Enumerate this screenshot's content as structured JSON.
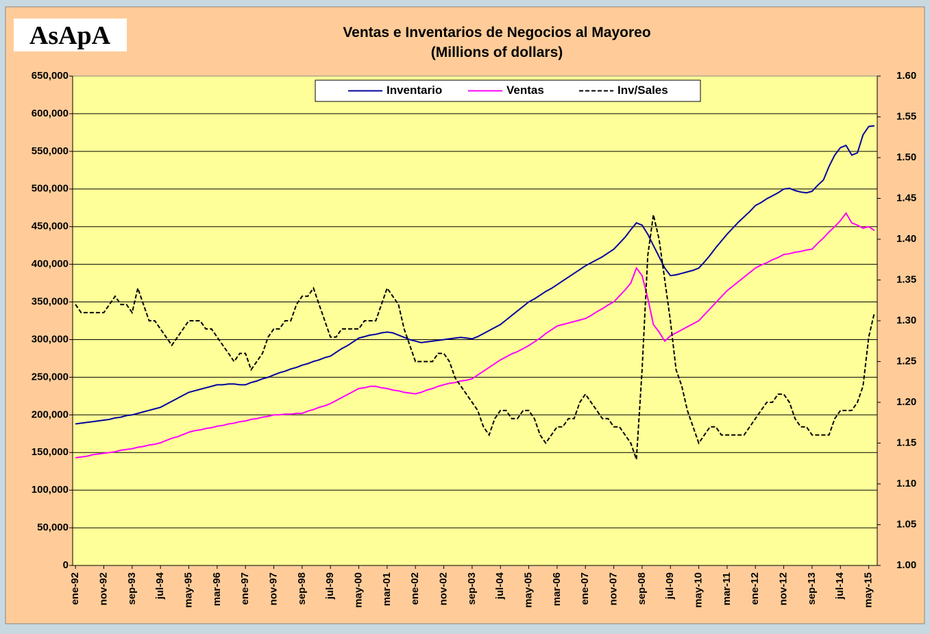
{
  "logo": "AsApA",
  "chart_data": {
    "type": "line",
    "title": "Ventas e Inventarios de Negocios al Mayoreo",
    "subtitle": "(Millions of dollars)",
    "categories": [
      "ene-92",
      null,
      null,
      null,
      null,
      "nov-92",
      null,
      null,
      null,
      null,
      "sep-93",
      null,
      null,
      null,
      null,
      "jul-94",
      null,
      null,
      null,
      null,
      "may-95",
      null,
      null,
      null,
      null,
      "mar-96",
      null,
      null,
      null,
      null,
      "ene-97",
      null,
      null,
      null,
      null,
      "nov-97",
      null,
      null,
      null,
      null,
      "sep-98",
      null,
      null,
      null,
      null,
      "jul-99",
      null,
      null,
      null,
      null,
      "may-00",
      null,
      null,
      null,
      null,
      "mar-01",
      null,
      null,
      null,
      null,
      "ene-02",
      null,
      null,
      null,
      null,
      "nov-02",
      null,
      null,
      null,
      null,
      "sep-03",
      null,
      null,
      null,
      null,
      "jul-04",
      null,
      null,
      null,
      null,
      "may-05",
      null,
      null,
      null,
      null,
      "mar-06",
      null,
      null,
      null,
      null,
      "ene-07",
      null,
      null,
      null,
      null,
      "nov-07",
      null,
      null,
      null,
      null,
      "sep-08",
      null,
      null,
      null,
      null,
      "jul-09",
      null,
      null,
      null,
      null,
      "may-10",
      null,
      null,
      null,
      null,
      "mar-11",
      null,
      null,
      null,
      null,
      "ene-12",
      null,
      null,
      null,
      null,
      "nov-12",
      null,
      null,
      null,
      null,
      "sep-13",
      null,
      null,
      null,
      null,
      "jul-14",
      null,
      null,
      null,
      null,
      "may-15",
      null
    ],
    "series": [
      {
        "name": "Inventario",
        "color": "#0000a0",
        "dash": false,
        "values": [
          188000,
          189000,
          190000,
          191000,
          192000,
          193000,
          194000,
          196000,
          197000,
          199000,
          200000,
          202000,
          204000,
          206000,
          208000,
          210000,
          214000,
          218000,
          222000,
          226000,
          230000,
          232000,
          234000,
          236000,
          238000,
          240000,
          240000,
          241000,
          241000,
          240000,
          240000,
          243000,
          245000,
          248000,
          250000,
          253000,
          256000,
          258000,
          261000,
          263000,
          266000,
          268000,
          271000,
          273000,
          276000,
          278000,
          283000,
          288000,
          292000,
          297000,
          302000,
          304000,
          306000,
          307000,
          309000,
          310000,
          309000,
          306000,
          303000,
          300000,
          298000,
          296000,
          297000,
          298000,
          299000,
          300000,
          301000,
          302000,
          303000,
          302000,
          301000,
          304000,
          308000,
          312000,
          316000,
          320000,
          326000,
          332000,
          338000,
          344000,
          350000,
          354000,
          359000,
          364000,
          368000,
          373000,
          378000,
          383000,
          388000,
          393000,
          398000,
          402000,
          406000,
          410000,
          415000,
          420000,
          428000,
          436000,
          446000,
          455000,
          452000,
          440000,
          425000,
          410000,
          395000,
          385000,
          386000,
          388000,
          390000,
          392000,
          395000,
          403000,
          412000,
          422000,
          431000,
          440000,
          448000,
          456000,
          463000,
          470000,
          478000,
          482000,
          487000,
          491000,
          495000,
          500000,
          501000,
          498000,
          496000,
          495000,
          497000,
          505000,
          512000,
          530000,
          545000,
          555000,
          558000,
          545000,
          548000,
          572000,
          583000,
          584000
        ]
      },
      {
        "name": "Ventas",
        "color": "#ff00ff",
        "dash": false,
        "values": [
          143000,
          144000,
          145000,
          147000,
          148000,
          149000,
          150000,
          151000,
          153000,
          154000,
          155000,
          157000,
          158000,
          160000,
          161000,
          163000,
          166000,
          169000,
          171000,
          174000,
          177000,
          179000,
          180000,
          182000,
          183000,
          185000,
          186000,
          188000,
          189000,
          191000,
          192000,
          194000,
          195000,
          197000,
          198000,
          200000,
          200000,
          201000,
          201000,
          202000,
          202000,
          205000,
          207000,
          210000,
          212000,
          215000,
          219000,
          223000,
          227000,
          231000,
          235000,
          236000,
          238000,
          238000,
          236000,
          235000,
          233000,
          232000,
          230000,
          229000,
          228000,
          230000,
          233000,
          235000,
          238000,
          240000,
          242000,
          243000,
          245000,
          246000,
          248000,
          253000,
          258000,
          263000,
          268000,
          273000,
          277000,
          281000,
          284000,
          288000,
          292000,
          297000,
          302000,
          308000,
          313000,
          318000,
          320000,
          322000,
          324000,
          326000,
          328000,
          332000,
          337000,
          341000,
          346000,
          350000,
          358000,
          366000,
          375000,
          395000,
          385000,
          355000,
          320000,
          310000,
          298000,
          305000,
          309000,
          313000,
          317000,
          321000,
          325000,
          333000,
          341000,
          349000,
          357000,
          365000,
          371000,
          377000,
          383000,
          389000,
          395000,
          399000,
          402000,
          406000,
          409000,
          413000,
          414000,
          416000,
          417000,
          419000,
          420000,
          428000,
          435000,
          443000,
          450000,
          458000,
          468000,
          455000,
          452000,
          448000,
          450000,
          445000
        ]
      },
      {
        "name": "Inv/Sales",
        "color": "#000000",
        "dash": true,
        "axis": "y2",
        "values": [
          1.32,
          1.31,
          1.31,
          1.31,
          1.31,
          1.31,
          1.32,
          1.33,
          1.32,
          1.32,
          1.31,
          1.34,
          1.32,
          1.3,
          1.3,
          1.29,
          1.28,
          1.27,
          1.28,
          1.29,
          1.3,
          1.3,
          1.3,
          1.29,
          1.29,
          1.28,
          1.27,
          1.26,
          1.25,
          1.26,
          1.26,
          1.24,
          1.25,
          1.26,
          1.28,
          1.29,
          1.29,
          1.3,
          1.3,
          1.32,
          1.33,
          1.33,
          1.34,
          1.32,
          1.3,
          1.28,
          1.28,
          1.29,
          1.29,
          1.29,
          1.29,
          1.3,
          1.3,
          1.3,
          1.32,
          1.34,
          1.33,
          1.32,
          1.29,
          1.27,
          1.25,
          1.25,
          1.25,
          1.25,
          1.26,
          1.26,
          1.25,
          1.23,
          1.22,
          1.21,
          1.2,
          1.19,
          1.17,
          1.16,
          1.18,
          1.19,
          1.19,
          1.18,
          1.18,
          1.19,
          1.19,
          1.18,
          1.16,
          1.15,
          1.16,
          1.17,
          1.17,
          1.18,
          1.18,
          1.2,
          1.21,
          1.2,
          1.19,
          1.18,
          1.18,
          1.17,
          1.17,
          1.16,
          1.15,
          1.13,
          1.24,
          1.38,
          1.43,
          1.4,
          1.35,
          1.3,
          1.24,
          1.22,
          1.19,
          1.17,
          1.15,
          1.16,
          1.17,
          1.17,
          1.16,
          1.16,
          1.16,
          1.16,
          1.16,
          1.17,
          1.18,
          1.19,
          1.2,
          1.2,
          1.21,
          1.21,
          1.2,
          1.18,
          1.17,
          1.17,
          1.16,
          1.16,
          1.16,
          1.16,
          1.18,
          1.19,
          1.19,
          1.19,
          1.2,
          1.22,
          1.28,
          1.31
        ]
      }
    ],
    "ylim": [
      0,
      650000
    ],
    "yticks": [
      0,
      {
        "value": 50000,
        "label": "50,000"
      },
      {
        "value": 100000,
        "label": "100,000"
      },
      {
        "value": 150000,
        "label": "150,000"
      },
      {
        "value": 200000,
        "label": "200,000"
      },
      {
        "value": 250000,
        "label": "250,000"
      },
      {
        "value": 300000,
        "label": "300,000"
      },
      {
        "value": 350000,
        "label": "350,000"
      },
      {
        "value": 400000,
        "label": "400,000"
      },
      {
        "value": 450000,
        "label": "450,000"
      },
      {
        "value": 500000,
        "label": "500,000"
      },
      {
        "value": 550000,
        "label": "550,000"
      },
      {
        "value": 600000,
        "label": "600,000"
      },
      {
        "value": 650000,
        "label": "650,000"
      }
    ],
    "y2lim": [
      1.0,
      1.6
    ],
    "y2ticks": [
      {
        "value": 1,
        "label": "1.00"
      },
      1.05,
      {
        "value": 1.1,
        "label": "1.10"
      },
      1.15,
      {
        "value": 1.2,
        "label": "1.20"
      },
      1.25,
      {
        "value": 1.3,
        "label": "1.30"
      },
      1.35,
      {
        "value": 1.4,
        "label": "1.40"
      },
      1.45,
      {
        "value": 1.5,
        "label": "1.50"
      },
      1.55,
      {
        "value": 1.6,
        "label": "1.60"
      }
    ],
    "grid": true,
    "legend": "top"
  }
}
